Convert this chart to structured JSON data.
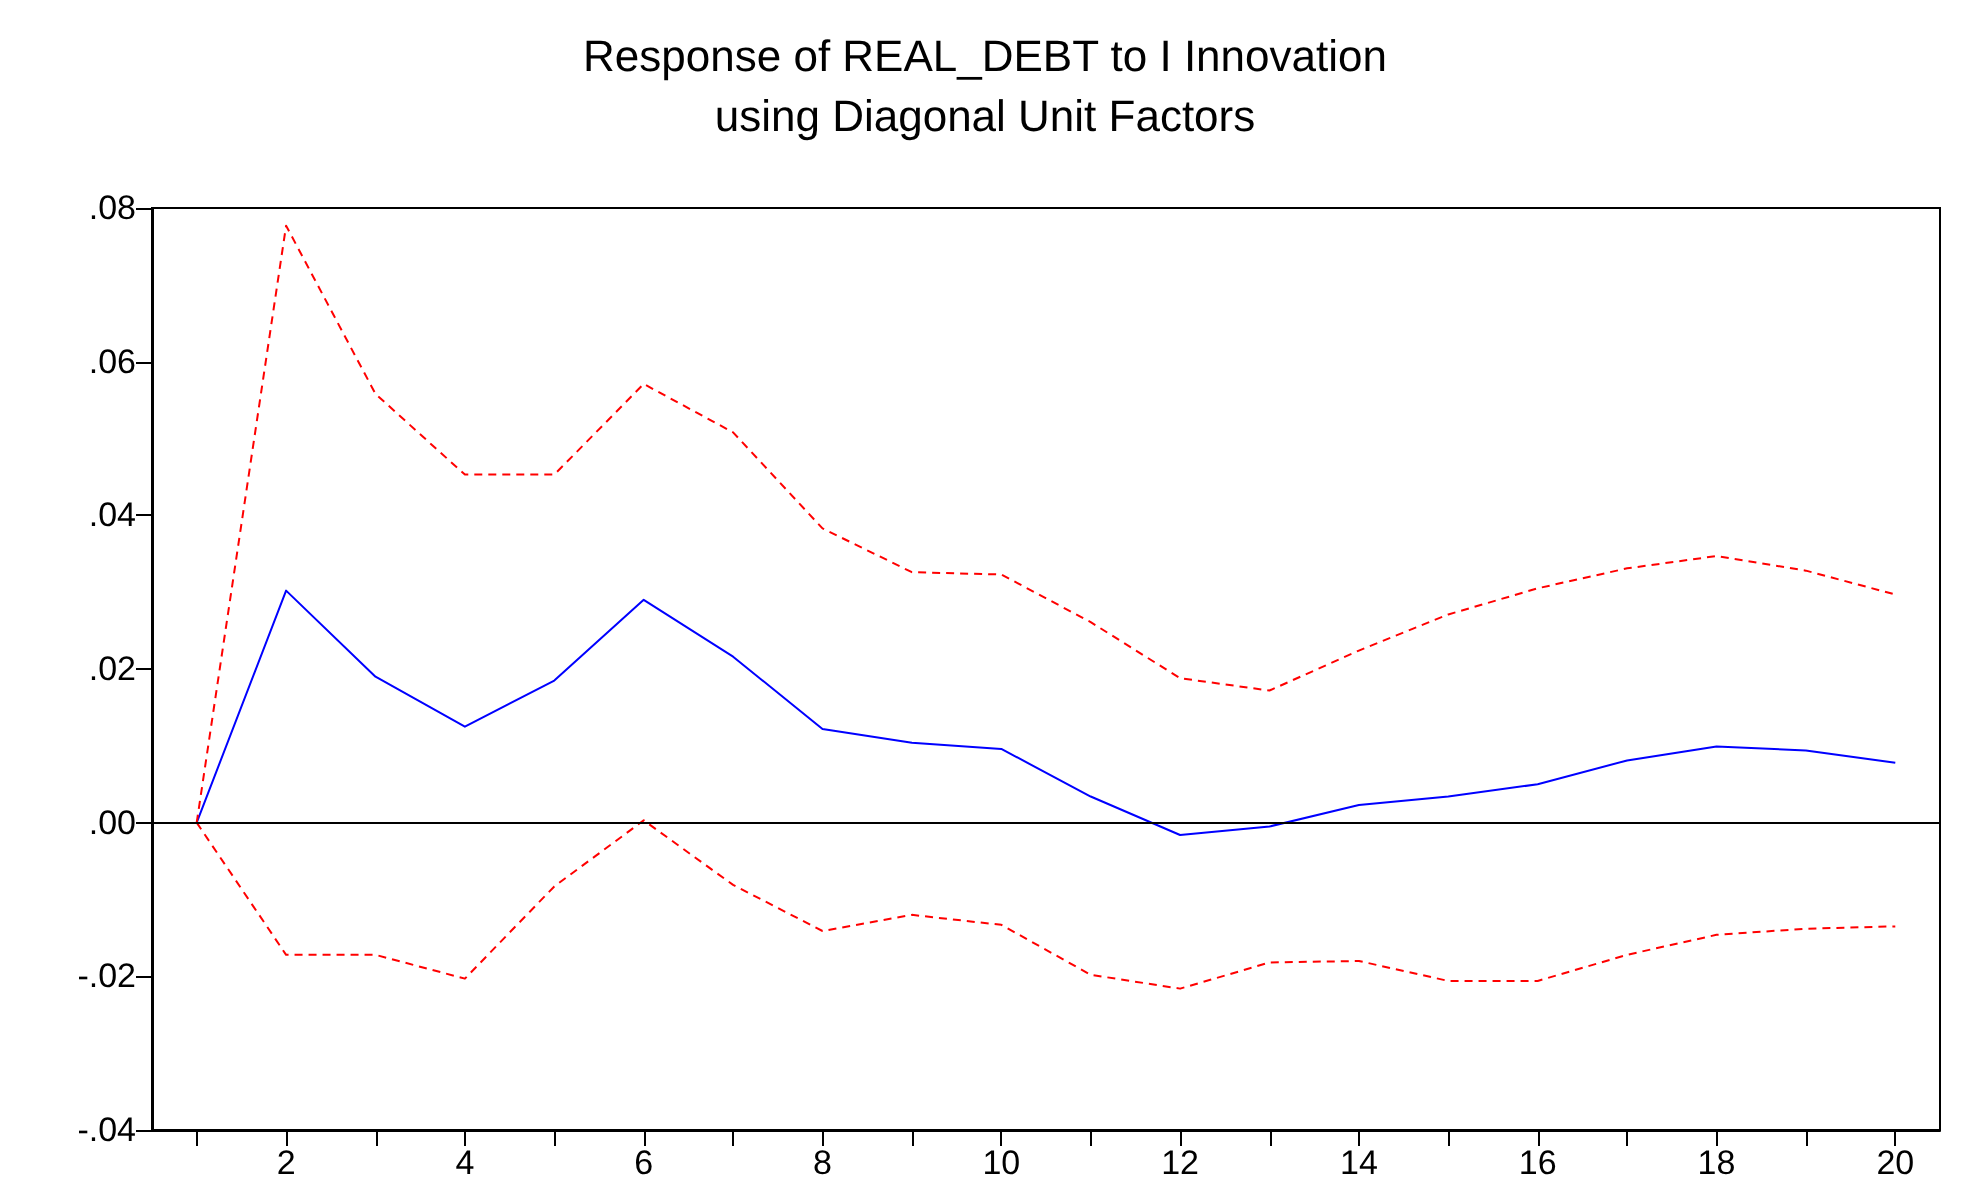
{
  "chart_data": {
    "type": "line",
    "title": "Response of REAL_DEBT to I Innovation\nusing Diagonal Unit Factors",
    "x": [
      1,
      2,
      3,
      4,
      5,
      6,
      7,
      8,
      9,
      10,
      11,
      12,
      13,
      14,
      15,
      16,
      17,
      18,
      19,
      20
    ],
    "series": [
      {
        "color": "#0000ff",
        "line_style": "solid",
        "values": [
          0,
          0.0302,
          0.019,
          0.0125,
          0.0185,
          0.029,
          0.0216,
          0.0122,
          0.0104,
          0.0096,
          0.0034,
          -0.0016,
          -0.0005,
          0.0023,
          0.0034,
          0.005,
          0.0081,
          0.0099,
          0.0094,
          0.0078
        ]
      },
      {
        "color": "#ff0000",
        "line_style": "dashed",
        "values": [
          0,
          0.0777,
          0.0558,
          0.0453,
          0.0453,
          0.0571,
          0.0508,
          0.0383,
          0.0326,
          0.0323,
          0.0261,
          0.0188,
          0.0172,
          0.0224,
          0.0271,
          0.0305,
          0.0331,
          0.0347,
          0.0328,
          0.0297
        ]
      },
      {
        "color": "#ff0000",
        "line_style": "dashed",
        "values": [
          0,
          -0.0172,
          -0.0172,
          -0.0203,
          -0.0083,
          0.0003,
          -0.0081,
          -0.0141,
          -0.012,
          -0.0133,
          -0.0198,
          -0.0216,
          -0.0182,
          -0.018,
          -0.0206,
          -0.0206,
          -0.0172,
          -0.0146,
          -0.0138,
          -0.0135
        ]
      }
    ],
    "xlim": [
      0.5,
      20.5
    ],
    "xticks": [
      {
        "value": 1,
        "label": null
      },
      2,
      {
        "value": 3,
        "label": null
      },
      4,
      {
        "value": 5,
        "label": null
      },
      6,
      {
        "value": 7,
        "label": null
      },
      8,
      {
        "value": 9,
        "label": null
      },
      10,
      {
        "value": 11,
        "label": null
      },
      12,
      {
        "value": 13,
        "label": null
      },
      14,
      {
        "value": 15,
        "label": null
      },
      16,
      {
        "value": 17,
        "label": null
      },
      18,
      {
        "value": 19,
        "label": null
      },
      20
    ],
    "ylim": [
      -0.04,
      0.08
    ],
    "yticks": [
      {
        "value": -0.04,
        "label": "-.04"
      },
      {
        "value": -0.02,
        "label": "-.02"
      },
      {
        "value": 0,
        "label": ".00"
      },
      {
        "value": 0.02,
        "label": ".02"
      },
      {
        "value": 0.04,
        "label": ".04"
      },
      {
        "value": 0.06,
        "label": ".06"
      },
      {
        "value": 0.08,
        "label": ".08"
      }
    ],
    "ref_lines": [
      {
        "axis": "y",
        "value": 0,
        "color": "#000000"
      }
    ],
    "grid": false,
    "marker": "none"
  }
}
